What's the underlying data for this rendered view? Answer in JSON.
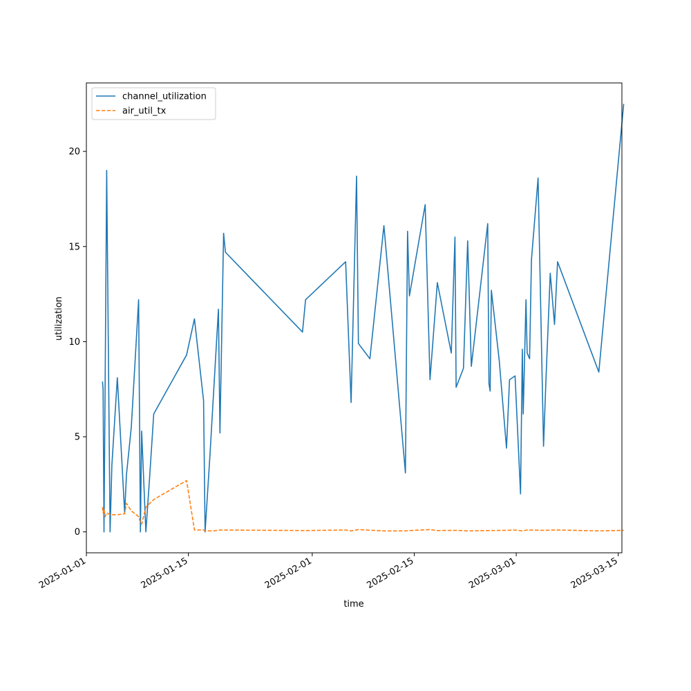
{
  "chart_data": {
    "type": "line",
    "xlabel": "time",
    "ylabel": "utilization",
    "xlim": [
      "2025-01-01T00:00",
      "2025-03-15T12:00"
    ],
    "ylim": [
      -1.1,
      23.6
    ],
    "x_ticks": [
      "2025-01-01",
      "2025-01-15",
      "2025-02-01",
      "2025-02-15",
      "2025-03-01",
      "2025-03-15"
    ],
    "y_ticks": [
      0,
      5,
      10,
      15,
      20
    ],
    "legend_position": "top-left",
    "grid": false,
    "series": [
      {
        "name": "channel_utilization",
        "color": "#1f77b4",
        "dash": "solid",
        "points": [
          [
            "2025-01-03T05:00",
            7.9
          ],
          [
            "2025-01-03T07:00",
            7.5
          ],
          [
            "2025-01-03T10:00",
            0.0
          ],
          [
            "2025-01-03T14:00",
            8.0
          ],
          [
            "2025-01-03T19:00",
            19.0
          ],
          [
            "2025-01-04T06:00",
            0.0
          ],
          [
            "2025-01-04T12:00",
            3.5
          ],
          [
            "2025-01-05T06:00",
            8.1
          ],
          [
            "2025-01-06T06:00",
            1.0
          ],
          [
            "2025-01-06T12:00",
            3.0
          ],
          [
            "2025-01-07T04:00",
            5.5
          ],
          [
            "2025-01-08T04:00",
            12.2
          ],
          [
            "2025-01-08T10:00",
            0.0
          ],
          [
            "2025-01-08T14:00",
            5.3
          ],
          [
            "2025-01-09T04:00",
            0.0
          ],
          [
            "2025-01-09T16:00",
            2.8
          ],
          [
            "2025-01-10T06:00",
            6.2
          ],
          [
            "2025-01-14T18:00",
            9.3
          ],
          [
            "2025-01-15T20:00",
            11.2
          ],
          [
            "2025-01-17T02:00",
            6.9
          ],
          [
            "2025-01-17T07:00",
            0.0
          ],
          [
            "2025-01-17T23:00",
            4.0
          ],
          [
            "2025-01-19T03:00",
            11.7
          ],
          [
            "2025-01-19T08:00",
            5.2
          ],
          [
            "2025-01-19T20:00",
            15.7
          ],
          [
            "2025-01-20T02:00",
            14.7
          ],
          [
            "2025-01-30T16:00",
            10.5
          ],
          [
            "2025-01-31T02:00",
            12.2
          ],
          [
            "2025-02-05T14:00",
            14.2
          ],
          [
            "2025-02-06T08:00",
            6.8
          ],
          [
            "2025-02-07T02:00",
            18.7
          ],
          [
            "2025-02-07T08:00",
            9.9
          ],
          [
            "2025-02-08T22:00",
            9.1
          ],
          [
            "2025-02-10T20:00",
            16.1
          ],
          [
            "2025-02-13T19:00",
            3.1
          ],
          [
            "2025-02-14T02:00",
            15.8
          ],
          [
            "2025-02-14T08:00",
            12.4
          ],
          [
            "2025-02-16T12:00",
            17.2
          ],
          [
            "2025-02-17T04:00",
            8.0
          ],
          [
            "2025-02-18T04:00",
            13.1
          ],
          [
            "2025-02-20T02:00",
            9.4
          ],
          [
            "2025-02-20T14:00",
            15.5
          ],
          [
            "2025-02-20T18:00",
            7.6
          ],
          [
            "2025-02-21T18:00",
            8.6
          ],
          [
            "2025-02-22T08:00",
            15.3
          ],
          [
            "2025-02-22T20:00",
            8.7
          ],
          [
            "2025-02-25T02:00",
            16.2
          ],
          [
            "2025-02-25T06:00",
            7.8
          ],
          [
            "2025-02-25T10:00",
            7.4
          ],
          [
            "2025-02-25T14:00",
            12.7
          ],
          [
            "2025-02-26T16:00",
            9.0
          ],
          [
            "2025-02-27T16:00",
            4.4
          ],
          [
            "2025-02-28T02:00",
            8.0
          ],
          [
            "2025-02-28T20:00",
            8.2
          ],
          [
            "2025-03-01T14:00",
            2.0
          ],
          [
            "2025-03-01T20:00",
            9.6
          ],
          [
            "2025-03-01T23:00",
            6.2
          ],
          [
            "2025-03-02T08:00",
            12.2
          ],
          [
            "2025-03-02T12:00",
            9.4
          ],
          [
            "2025-03-02T20:00",
            9.1
          ],
          [
            "2025-03-03T02:00",
            14.3
          ],
          [
            "2025-03-04T00:00",
            18.6
          ],
          [
            "2025-03-04T18:00",
            4.5
          ],
          [
            "2025-03-05T02:00",
            8.1
          ],
          [
            "2025-03-05T16:00",
            13.6
          ],
          [
            "2025-03-06T06:00",
            10.9
          ],
          [
            "2025-03-06T16:00",
            14.2
          ],
          [
            "2025-03-12T08:00",
            8.4
          ],
          [
            "2025-03-15T18:00",
            22.5
          ]
        ]
      },
      {
        "name": "air_util_tx",
        "color": "#ff7f0e",
        "dash": "dashed",
        "points": [
          [
            "2025-01-03T05:00",
            1.3
          ],
          [
            "2025-01-03T07:00",
            1.0
          ],
          [
            "2025-01-03T10:00",
            1.2
          ],
          [
            "2025-01-03T14:00",
            0.8
          ],
          [
            "2025-01-03T19:00",
            1.0
          ],
          [
            "2025-01-04T06:00",
            0.9
          ],
          [
            "2025-01-05T06:00",
            0.9
          ],
          [
            "2025-01-06T06:00",
            0.95
          ],
          [
            "2025-01-06T12:00",
            1.5
          ],
          [
            "2025-01-07T04:00",
            1.1
          ],
          [
            "2025-01-08T04:00",
            0.8
          ],
          [
            "2025-01-08T10:00",
            0.5
          ],
          [
            "2025-01-08T14:00",
            0.4
          ],
          [
            "2025-01-09T04:00",
            1.3
          ],
          [
            "2025-01-10T06:00",
            1.7
          ],
          [
            "2025-01-14T18:00",
            2.7
          ],
          [
            "2025-01-15T20:00",
            0.1
          ],
          [
            "2025-01-17T02:00",
            0.1
          ],
          [
            "2025-01-17T07:00",
            0.05
          ],
          [
            "2025-01-18T12:00",
            0.05
          ],
          [
            "2025-01-19T08:00",
            0.1
          ],
          [
            "2025-01-31T02:00",
            0.07
          ],
          [
            "2025-02-05T14:00",
            0.1
          ],
          [
            "2025-02-06T08:00",
            0.05
          ],
          [
            "2025-02-07T08:00",
            0.12
          ],
          [
            "2025-02-10T20:00",
            0.05
          ],
          [
            "2025-02-13T19:00",
            0.05
          ],
          [
            "2025-02-14T08:00",
            0.07
          ],
          [
            "2025-02-17T04:00",
            0.12
          ],
          [
            "2025-02-18T04:00",
            0.07
          ],
          [
            "2025-02-20T14:00",
            0.08
          ],
          [
            "2025-02-22T08:00",
            0.05
          ],
          [
            "2025-02-25T02:00",
            0.07
          ],
          [
            "2025-02-27T16:00",
            0.08
          ],
          [
            "2025-02-28T20:00",
            0.1
          ],
          [
            "2025-03-01T20:00",
            0.05
          ],
          [
            "2025-03-02T12:00",
            0.1
          ],
          [
            "2025-03-04T18:00",
            0.08
          ],
          [
            "2025-03-06T16:00",
            0.1
          ],
          [
            "2025-03-12T08:00",
            0.05
          ],
          [
            "2025-03-15T18:00",
            0.08
          ]
        ]
      }
    ]
  }
}
